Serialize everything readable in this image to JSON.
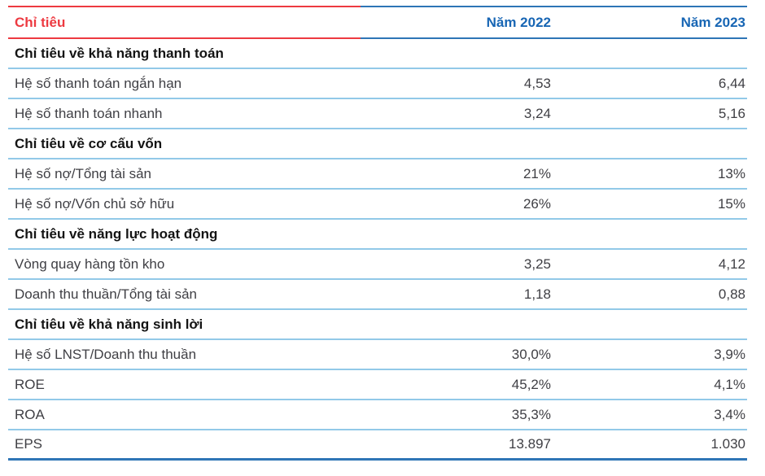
{
  "colors": {
    "accent_red": "#ed3a41",
    "header_blue_text": "#1866b4",
    "strong_blue_line": "#2e75b6",
    "light_blue_line": "#92c9e8",
    "row_text": "#3f3f44",
    "section_text": "#141414"
  },
  "table": {
    "header": {
      "col1": "Chỉ tiêu",
      "col2": "Năm 2022",
      "col3": "Năm 2023"
    },
    "sections": [
      {
        "title": "Chỉ tiêu về khả năng thanh toán",
        "rows": [
          {
            "label": "Hệ số thanh toán ngắn hạn",
            "y2022": "4,53",
            "y2023": "6,44"
          },
          {
            "label": "Hệ số thanh toán nhanh",
            "y2022": "3,24",
            "y2023": "5,16"
          }
        ]
      },
      {
        "title": "Chỉ tiêu về cơ cấu vốn",
        "rows": [
          {
            "label": "Hệ số nợ/Tổng tài sản",
            "y2022": "21%",
            "y2023": "13%"
          },
          {
            "label": "Hệ số nợ/Vốn chủ sở hữu",
            "y2022": "26%",
            "y2023": "15%"
          }
        ]
      },
      {
        "title": "Chỉ tiêu về năng lực hoạt động",
        "rows": [
          {
            "label": "Vòng quay hàng tồn kho",
            "y2022": "3,25",
            "y2023": "4,12"
          },
          {
            "label": "Doanh thu thuần/Tổng tài sản",
            "y2022": "1,18",
            "y2023": "0,88"
          }
        ]
      },
      {
        "title": "Chỉ tiêu về khả năng sinh lời",
        "rows": [
          {
            "label": "Hệ số LNST/Doanh thu thuần",
            "y2022": "30,0%",
            "y2023": "3,9%"
          },
          {
            "label": "ROE",
            "y2022": "45,2%",
            "y2023": "4,1%"
          },
          {
            "label": "ROA",
            "y2022": "35,3%",
            "y2023": "3,4%"
          },
          {
            "label": "EPS",
            "y2022": "13.897",
            "y2023": "1.030"
          }
        ]
      }
    ]
  }
}
